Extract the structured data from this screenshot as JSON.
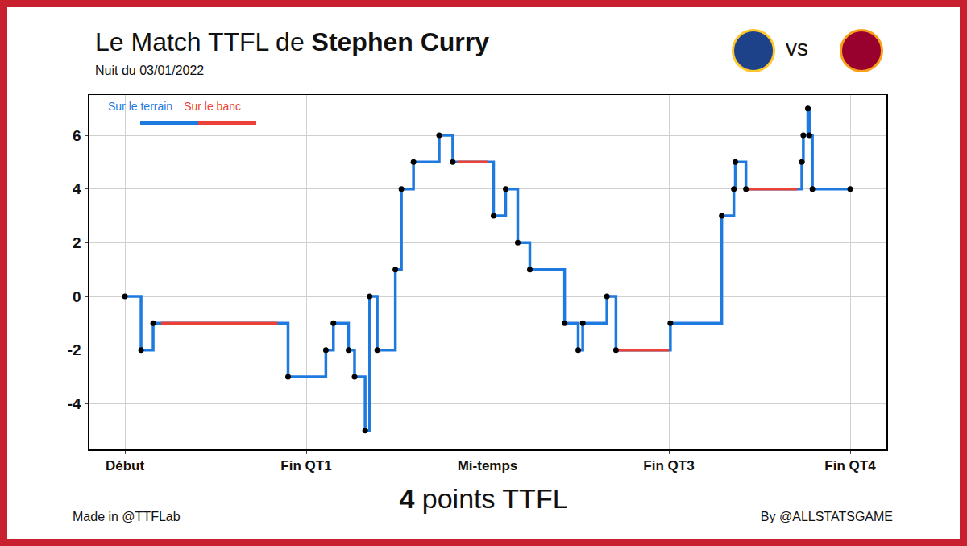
{
  "chart_data": {
    "type": "line",
    "title": "Le Match TTFL de Stephen Curry",
    "player": "Stephen Curry",
    "subtitle": "Nuit du 03/01/2022",
    "matchup_separator": "vs",
    "total": {
      "value": 4,
      "label": "points TTFL"
    },
    "credits": [
      "Made in @TTFLab",
      "By @ALLSTATSGAME"
    ],
    "legend": "upper left",
    "grid": true,
    "xlim": [
      -2.4,
      50.4
    ],
    "xticks": [
      {
        "value": 0,
        "label": "Début"
      },
      {
        "value": 12,
        "label": "Fin QT1"
      },
      {
        "value": 24,
        "label": "Mi-temps"
      },
      {
        "value": 36,
        "label": "Fin QT3"
      },
      {
        "value": 48,
        "label": "Fin QT4"
      }
    ],
    "ylim": [
      -5.7,
      7.5
    ],
    "yticks": [
      -4,
      -2,
      0,
      2,
      4,
      6
    ],
    "series": [
      {
        "name": "Sur le terrain",
        "color": "#1f7ae0",
        "marker": "circle",
        "line_style": "step",
        "x": [
          0,
          1.07,
          1.87,
          10.8,
          13.3,
          13.8,
          14.8,
          15.2,
          15.9,
          16.2,
          16.7,
          17.9,
          18.3,
          19.1,
          20.8,
          21.7,
          24.4,
          25.2,
          26.0,
          26.8,
          29.1,
          30.0,
          30.3,
          31.9,
          32.5,
          36.1,
          39.5,
          40.3,
          40.4,
          41.1,
          44.8,
          44.9,
          45.2,
          45.3,
          45.5,
          48
        ],
        "values": [
          0,
          -2,
          -1,
          -3,
          -2,
          -1,
          -2,
          -3,
          -5,
          0,
          -2,
          1,
          4,
          5,
          6,
          5,
          3,
          4,
          2,
          1,
          -1,
          -2,
          -1,
          0,
          -2,
          -1,
          3,
          4,
          5,
          4,
          5,
          6,
          7,
          6,
          4,
          4
        ]
      }
    ],
    "bench": {
      "name": "Sur le banc",
      "color": "#ec4137",
      "intervals": [
        [
          2.4,
          10.1
        ],
        [
          22.0,
          24.0
        ],
        [
          32.5,
          36.0
        ],
        [
          41.1,
          44.5
        ]
      ]
    }
  }
}
